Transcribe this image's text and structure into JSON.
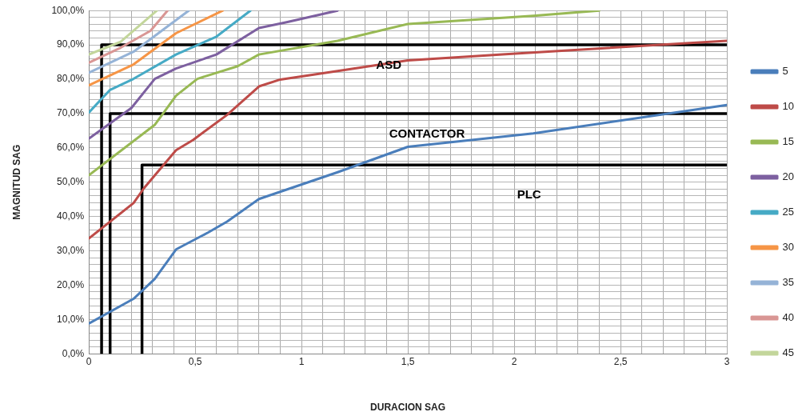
{
  "chart_data": {
    "type": "line",
    "xlabel": "DURACION SAG",
    "ylabel": "MAGNITUD SAG",
    "xlim": [
      0,
      3
    ],
    "ylim": [
      0,
      100
    ],
    "xticks": [
      {
        "value": 0,
        "label": "0"
      },
      {
        "value": 0.1,
        "label": null
      },
      {
        "value": 0.2,
        "label": null
      },
      {
        "value": 0.3,
        "label": null
      },
      {
        "value": 0.4,
        "label": null
      },
      {
        "value": 0.5,
        "label": "0,5"
      },
      {
        "value": 0.6,
        "label": null
      },
      {
        "value": 0.7,
        "label": null
      },
      {
        "value": 0.8,
        "label": null
      },
      {
        "value": 0.9,
        "label": null
      },
      {
        "value": 1,
        "label": "1"
      },
      {
        "value": 1.1,
        "label": null
      },
      {
        "value": 1.2,
        "label": null
      },
      {
        "value": 1.3,
        "label": null
      },
      {
        "value": 1.4,
        "label": null
      },
      {
        "value": 1.5,
        "label": "1,5"
      },
      {
        "value": 1.6,
        "label": null
      },
      {
        "value": 1.7,
        "label": null
      },
      {
        "value": 1.8,
        "label": null
      },
      {
        "value": 1.9,
        "label": null
      },
      {
        "value": 2,
        "label": "2"
      },
      {
        "value": 2.1,
        "label": null
      },
      {
        "value": 2.2,
        "label": null
      },
      {
        "value": 2.3,
        "label": null
      },
      {
        "value": 2.4,
        "label": null
      },
      {
        "value": 2.5,
        "label": "2,5"
      },
      {
        "value": 2.6,
        "label": null
      },
      {
        "value": 2.7,
        "label": null
      },
      {
        "value": 2.8,
        "label": null
      },
      {
        "value": 2.9,
        "label": null
      },
      {
        "value": 3,
        "label": "3"
      }
    ],
    "yticks": [
      {
        "value": 0,
        "label": "0,0%"
      },
      {
        "value": 2,
        "label": null
      },
      {
        "value": 4,
        "label": null
      },
      {
        "value": 6,
        "label": null
      },
      {
        "value": 8,
        "label": null
      },
      {
        "value": 10,
        "label": "10,0%"
      },
      {
        "value": 12,
        "label": null
      },
      {
        "value": 14,
        "label": null
      },
      {
        "value": 16,
        "label": null
      },
      {
        "value": 18,
        "label": null
      },
      {
        "value": 20,
        "label": "20,0%"
      },
      {
        "value": 22,
        "label": null
      },
      {
        "value": 24,
        "label": null
      },
      {
        "value": 26,
        "label": null
      },
      {
        "value": 28,
        "label": null
      },
      {
        "value": 30,
        "label": "30,0%"
      },
      {
        "value": 32,
        "label": null
      },
      {
        "value": 34,
        "label": null
      },
      {
        "value": 36,
        "label": null
      },
      {
        "value": 38,
        "label": null
      },
      {
        "value": 40,
        "label": "40,0%"
      },
      {
        "value": 42,
        "label": null
      },
      {
        "value": 44,
        "label": null
      },
      {
        "value": 46,
        "label": null
      },
      {
        "value": 48,
        "label": null
      },
      {
        "value": 50,
        "label": "50,0%"
      },
      {
        "value": 52,
        "label": null
      },
      {
        "value": 54,
        "label": null
      },
      {
        "value": 56,
        "label": null
      },
      {
        "value": 58,
        "label": null
      },
      {
        "value": 60,
        "label": "60,0%"
      },
      {
        "value": 62,
        "label": null
      },
      {
        "value": 64,
        "label": null
      },
      {
        "value": 66,
        "label": null
      },
      {
        "value": 68,
        "label": null
      },
      {
        "value": 70,
        "label": "70,0%"
      },
      {
        "value": 72,
        "label": null
      },
      {
        "value": 74,
        "label": null
      },
      {
        "value": 76,
        "label": null
      },
      {
        "value": 78,
        "label": null
      },
      {
        "value": 80,
        "label": "80,0%"
      },
      {
        "value": 82,
        "label": null
      },
      {
        "value": 84,
        "label": null
      },
      {
        "value": 86,
        "label": null
      },
      {
        "value": 88,
        "label": null
      },
      {
        "value": 90,
        "label": "90,0%"
      },
      {
        "value": 92,
        "label": null
      },
      {
        "value": 94,
        "label": null
      },
      {
        "value": 96,
        "label": null
      },
      {
        "value": 98,
        "label": null
      },
      {
        "value": 100,
        "label": "100,0%"
      }
    ],
    "grid": true,
    "legend": "right",
    "marker": "none",
    "line_style": "solid",
    "series": [
      {
        "name": "5",
        "color": "#4a7ebb",
        "x": [
          0,
          0.21,
          0.31,
          0.41,
          0.56,
          0.65,
          0.8,
          1.17,
          1.5,
          2.09,
          3.0
        ],
        "values": [
          8.8,
          16,
          21.8,
          30.4,
          35.3,
          38.5,
          45.1,
          52.9,
          60.3,
          64.2,
          72.5
        ]
      },
      {
        "name": "10",
        "color": "#be4b48",
        "x": [
          0,
          0.21,
          0.26,
          0.41,
          0.49,
          0.65,
          0.8,
          0.9,
          1.17,
          1.5,
          1.96,
          3.0
        ],
        "values": [
          33.6,
          43.9,
          48.3,
          59.3,
          62.3,
          69.6,
          77.9,
          79.9,
          82.4,
          85.5,
          87.3,
          91.2
        ]
      },
      {
        "name": "15",
        "color": "#98b954",
        "x": [
          0,
          0.31,
          0.41,
          0.51,
          0.7,
          0.8,
          1.17,
          1.5,
          2.09,
          2.4
        ],
        "values": [
          52,
          66.7,
          75.2,
          80.1,
          83.8,
          87.2,
          91.2,
          96.1,
          98.5,
          100
        ]
      },
      {
        "name": "20",
        "color": "#7d60a0",
        "x": [
          0,
          0.2,
          0.31,
          0.41,
          0.6,
          0.8,
          0.93,
          1.17
        ],
        "values": [
          62.7,
          71.6,
          80.1,
          83.1,
          87.2,
          94.9,
          96.6,
          100
        ]
      },
      {
        "name": "25",
        "color": "#46aac5",
        "x": [
          0,
          0.1,
          0.21,
          0.41,
          0.6,
          0.76
        ],
        "values": [
          70.3,
          76.9,
          80.1,
          87.2,
          92.4,
          100
        ]
      },
      {
        "name": "30",
        "color": "#f69546",
        "x": [
          0,
          0.21,
          0.41,
          0.63
        ],
        "values": [
          78.2,
          84.3,
          93.4,
          100
        ]
      },
      {
        "name": "35",
        "color": "#95b3d7",
        "x": [
          0,
          0.21,
          0.36,
          0.47
        ],
        "values": [
          81.9,
          88,
          94.9,
          100
        ]
      },
      {
        "name": "40",
        "color": "#d99694",
        "x": [
          0,
          0.15,
          0.29,
          0.37
        ],
        "values": [
          84.8,
          89.2,
          94.1,
          100
        ]
      },
      {
        "name": "45",
        "color": "#c3d69b",
        "x": [
          0,
          0.15,
          0.32
        ],
        "values": [
          87.2,
          90.9,
          100
        ]
      },
      {
        "color": "#000000",
        "x": [
          0.06,
          0.06,
          3
        ],
        "values": [
          0,
          90,
          90
        ]
      },
      {
        "color": "#000000",
        "x": [
          0.1,
          0.1,
          3
        ],
        "values": [
          0,
          70,
          70
        ]
      },
      {
        "color": "#000000",
        "x": [
          0.25,
          0.25,
          3
        ],
        "values": [
          0,
          55,
          55
        ]
      }
    ],
    "annotations": [
      "ASD",
      "CONTACTOR",
      "PLC"
    ]
  }
}
